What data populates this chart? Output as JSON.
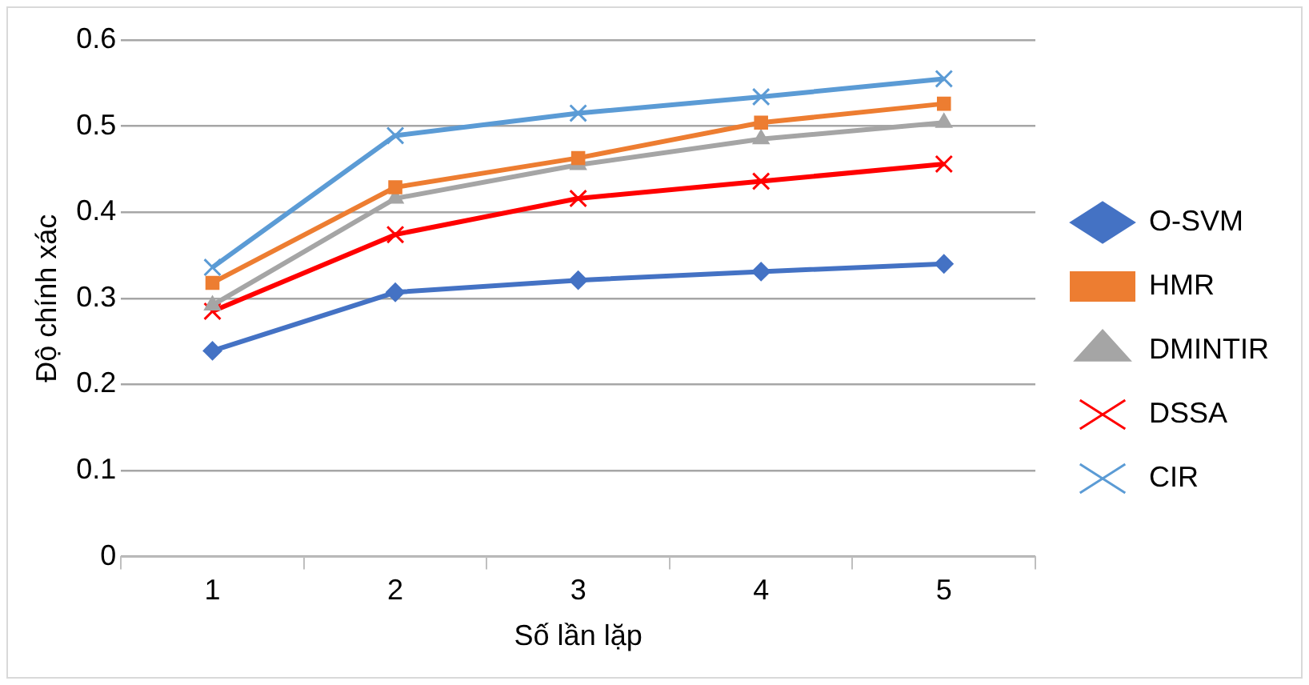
{
  "chart_data": {
    "type": "line",
    "xlabel": "Số lần lặp",
    "ylabel": "Độ chính xác",
    "categories": [
      "1",
      "2",
      "3",
      "4",
      "5"
    ],
    "series": [
      {
        "name": "O-SVM",
        "color": "#4472c4",
        "marker": "diamond",
        "values": [
          0.239,
          0.307,
          0.321,
          0.331,
          0.34
        ]
      },
      {
        "name": "HMR",
        "color": "#ed7d31",
        "marker": "square",
        "values": [
          0.318,
          0.429,
          0.463,
          0.504,
          0.526
        ]
      },
      {
        "name": "DMINTIR",
        "color": "#a5a5a5",
        "marker": "triangle",
        "values": [
          0.292,
          0.416,
          0.455,
          0.485,
          0.504
        ]
      },
      {
        "name": "DSSA",
        "color": "#ff0000",
        "marker": "cross",
        "values": [
          0.285,
          0.374,
          0.416,
          0.436,
          0.456
        ]
      },
      {
        "name": "CIR",
        "color": "#5b9bd5",
        "marker": "cross",
        "values": [
          0.336,
          0.489,
          0.515,
          0.534,
          0.555
        ]
      }
    ],
    "ylim": [
      0,
      0.6
    ],
    "yticks": [
      0,
      0.1,
      0.2,
      0.3,
      0.4,
      0.5,
      0.6
    ],
    "grid": "y",
    "legend": "right",
    "line_style": "solid"
  }
}
